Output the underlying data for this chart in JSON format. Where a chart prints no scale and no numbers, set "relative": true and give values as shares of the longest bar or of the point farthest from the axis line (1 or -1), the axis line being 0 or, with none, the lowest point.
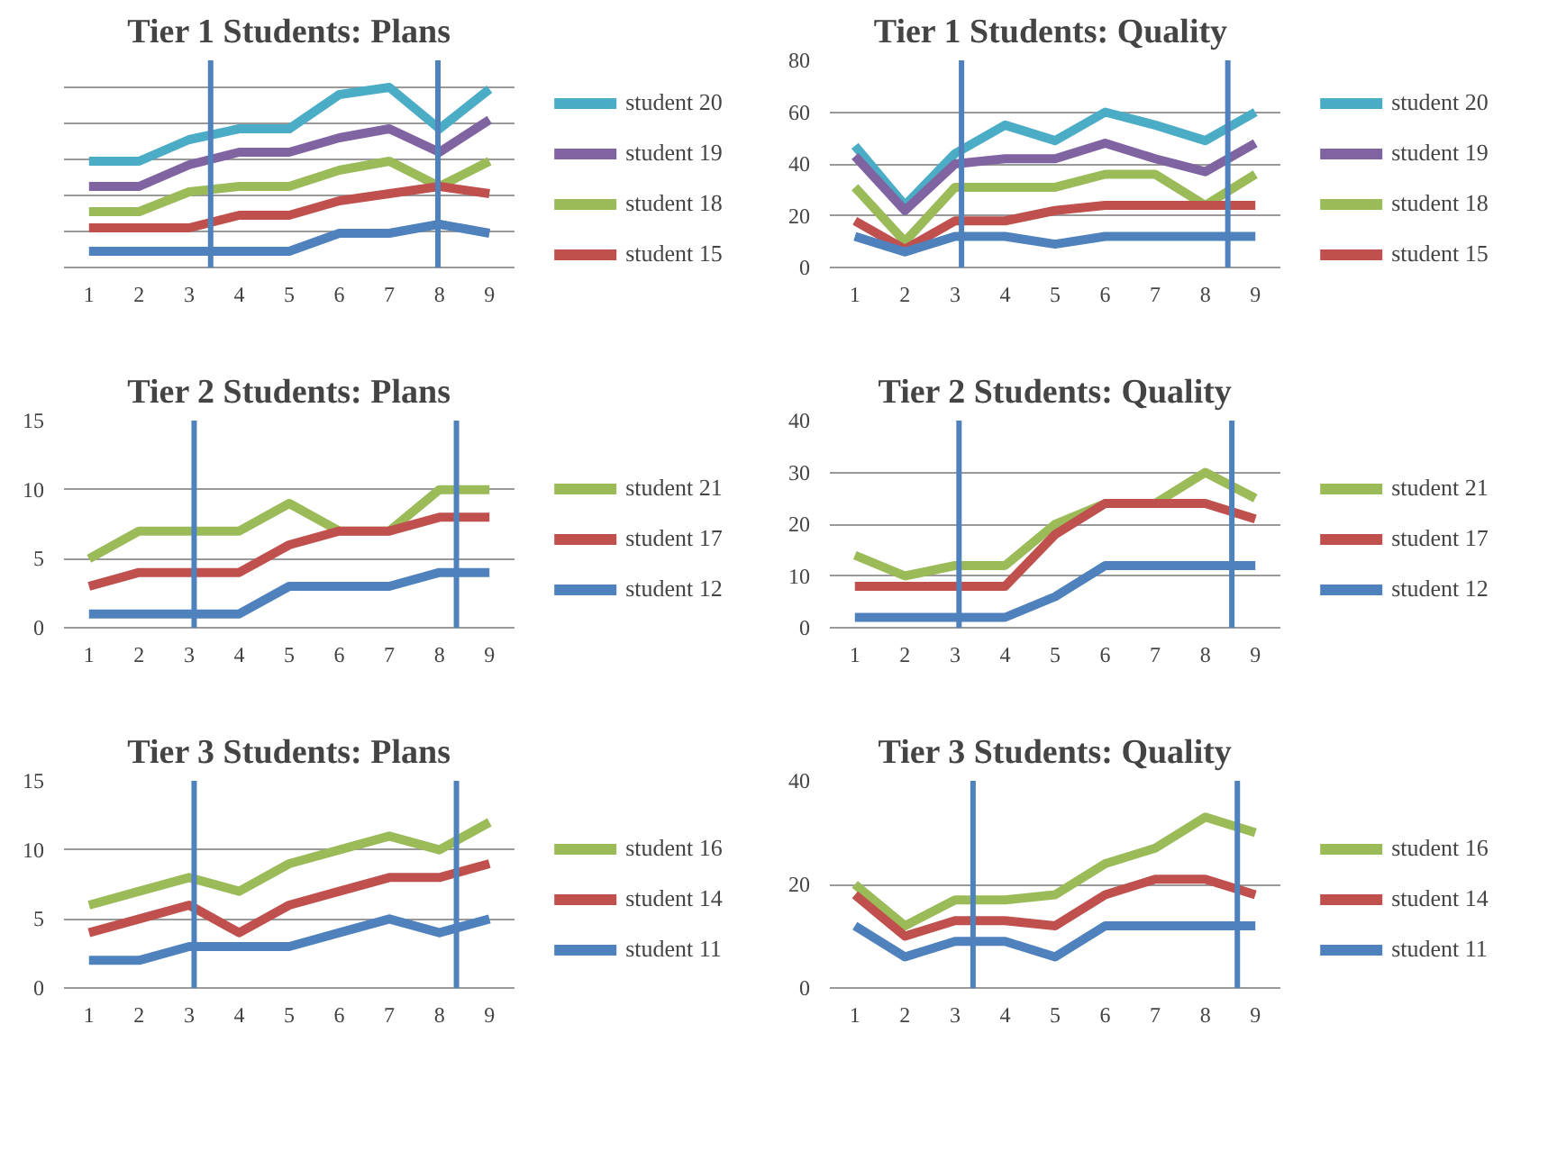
{
  "chart_data": [
    {
      "type": "line",
      "title": "Tier 1 Students: Plans",
      "relative": true,
      "x": [
        1,
        2,
        3,
        4,
        5,
        6,
        7,
        8,
        9
      ],
      "xlim": [
        0.5,
        9.5
      ],
      "xticks": [
        1,
        2,
        3,
        4,
        5,
        6,
        7,
        8,
        9
      ],
      "grid": "y",
      "legend": "right",
      "tick_labels": "x",
      "series": [
        {
          "name": "student 20",
          "color": "#4bacc6",
          "values": [
            0.59,
            0.59,
            0.71,
            0.77,
            0.77,
            0.96,
            1,
            0.77,
            0.99
          ]
        },
        {
          "name": "student 19",
          "color": "#8064a2",
          "values": [
            0.45,
            0.45,
            0.57,
            0.64,
            0.64,
            0.72,
            0.77,
            0.64,
            0.82
          ]
        },
        {
          "name": "student 18",
          "color": "#9bbb59",
          "values": [
            0.31,
            0.31,
            0.42,
            0.45,
            0.45,
            0.54,
            0.59,
            0.45,
            0.59
          ]
        },
        {
          "name": "student 15",
          "color": "#c0504d",
          "values": [
            0.22,
            0.22,
            0.22,
            0.29,
            0.29,
            0.37,
            0.41,
            0.45,
            0.41
          ]
        },
        {
          "color": "#4f81bd",
          "values": [
            0.09,
            0.09,
            0.09,
            0.09,
            0.09,
            0.19,
            0.19,
            0.24,
            0.19
          ]
        }
      ],
      "ref_lines": [
        {
          "axis": "x",
          "value": 3.43,
          "color": "#4f81bd"
        },
        {
          "axis": "x",
          "value": 7.97,
          "color": "#4f81bd"
        }
      ]
    },
    {
      "type": "line",
      "title": "Tier 1 Students:  Quality",
      "x": [
        1,
        2,
        3,
        4,
        5,
        6,
        7,
        8,
        9
      ],
      "xlim": [
        0.5,
        9.5
      ],
      "xticks": [
        1,
        2,
        3,
        4,
        5,
        6,
        7,
        8,
        9
      ],
      "ylim": [
        0,
        80
      ],
      "yticks": [
        0,
        20,
        40,
        60,
        80
      ],
      "grid": "y",
      "legend": "right",
      "series": [
        {
          "name": "student 20",
          "color": "#4bacc6",
          "values": [
            47,
            24,
            44,
            55,
            49,
            60,
            55,
            49,
            60
          ]
        },
        {
          "name": "student 19",
          "color": "#8064a2",
          "values": [
            43,
            22,
            40,
            42,
            42,
            48,
            42,
            37,
            48
          ]
        },
        {
          "name": "student 18",
          "color": "#9bbb59",
          "values": [
            31,
            10,
            31,
            31,
            31,
            36,
            36,
            24,
            36
          ]
        },
        {
          "name": "student 15",
          "color": "#c0504d",
          "values": [
            18,
            7,
            18,
            18,
            22,
            24,
            24,
            24,
            24
          ]
        },
        {
          "color": "#4f81bd",
          "values": [
            12,
            6,
            12,
            12,
            9,
            12,
            12,
            12,
            12
          ]
        }
      ],
      "ref_lines": [
        {
          "axis": "x",
          "value": 3.13,
          "color": "#4f81bd"
        },
        {
          "axis": "x",
          "value": 8.45,
          "color": "#4f81bd"
        }
      ]
    },
    {
      "type": "line",
      "title": "Tier 2 Students: Plans",
      "x": [
        1,
        2,
        3,
        4,
        5,
        6,
        7,
        8,
        9
      ],
      "xlim": [
        0.5,
        9.5
      ],
      "xticks": [
        1,
        2,
        3,
        4,
        5,
        6,
        7,
        8,
        9
      ],
      "ylim": [
        0,
        15
      ],
      "yticks": [
        0,
        5,
        10,
        15
      ],
      "grid": "y",
      "legend": "right",
      "series": [
        {
          "name": "student 21",
          "color": "#9bbb59",
          "values": [
            5,
            7,
            7,
            7,
            9,
            7,
            7,
            10,
            10
          ]
        },
        {
          "name": "student 17",
          "color": "#c0504d",
          "values": [
            3,
            4,
            4,
            4,
            6,
            7,
            7,
            8,
            8
          ]
        },
        {
          "name": "student 12",
          "color": "#4f81bd",
          "values": [
            1,
            1,
            1,
            1,
            3,
            3,
            3,
            4,
            4
          ]
        }
      ],
      "ref_lines": [
        {
          "axis": "x",
          "value": 3.1,
          "color": "#4f81bd"
        },
        {
          "axis": "x",
          "value": 8.34,
          "color": "#4f81bd"
        }
      ]
    },
    {
      "type": "line",
      "title": "Tier 2 Students: Quality",
      "x": [
        1,
        2,
        3,
        4,
        5,
        6,
        7,
        8,
        9
      ],
      "xlim": [
        0.5,
        9.5
      ],
      "xticks": [
        1,
        2,
        3,
        4,
        5,
        6,
        7,
        8,
        9
      ],
      "ylim": [
        0,
        40
      ],
      "yticks": [
        0,
        10,
        20,
        30,
        40
      ],
      "grid": "y",
      "legend": "right",
      "series": [
        {
          "name": "student 21",
          "color": "#9bbb59",
          "values": [
            14,
            10,
            12,
            12,
            20,
            24,
            24,
            30,
            25
          ]
        },
        {
          "name": "student 17",
          "color": "#c0504d",
          "values": [
            8,
            8,
            8,
            8,
            18,
            24,
            24,
            24,
            21
          ]
        },
        {
          "name": "student 12",
          "color": "#4f81bd",
          "values": [
            2,
            2,
            2,
            2,
            6,
            12,
            12,
            12,
            12
          ]
        }
      ],
      "ref_lines": [
        {
          "axis": "x",
          "value": 3.08,
          "color": "#4f81bd"
        },
        {
          "axis": "x",
          "value": 8.53,
          "color": "#4f81bd"
        }
      ]
    },
    {
      "type": "line",
      "title": "Tier 3 Students: Plans",
      "x": [
        1,
        2,
        3,
        4,
        5,
        6,
        7,
        8,
        9
      ],
      "xlim": [
        0.5,
        9.5
      ],
      "xticks": [
        1,
        2,
        3,
        4,
        5,
        6,
        7,
        8,
        9
      ],
      "ylim": [
        0,
        15
      ],
      "yticks": [
        0,
        5,
        10,
        15
      ],
      "grid": "y",
      "legend": "right",
      "series": [
        {
          "name": "student 16",
          "color": "#9bbb59",
          "values": [
            6,
            7,
            8,
            7,
            9,
            10,
            11,
            10,
            12
          ]
        },
        {
          "name": "student 14",
          "color": "#c0504d",
          "values": [
            4,
            5,
            6,
            4,
            6,
            7,
            8,
            8,
            9
          ]
        },
        {
          "name": "student 11",
          "color": "#4f81bd",
          "values": [
            2,
            2,
            3,
            3,
            3,
            4,
            5,
            4,
            5
          ]
        }
      ],
      "ref_lines": [
        {
          "axis": "x",
          "value": 3.1,
          "color": "#4f81bd"
        },
        {
          "axis": "x",
          "value": 8.34,
          "color": "#4f81bd"
        }
      ]
    },
    {
      "type": "line",
      "title": "Tier 3 Students: Quality",
      "x": [
        1,
        2,
        3,
        4,
        5,
        6,
        7,
        8,
        9
      ],
      "xlim": [
        0.5,
        9.5
      ],
      "xticks": [
        1,
        2,
        3,
        4,
        5,
        6,
        7,
        8,
        9
      ],
      "ylim": [
        0,
        40
      ],
      "yticks": [
        0,
        20,
        40
      ],
      "grid": "y",
      "legend": "right",
      "series": [
        {
          "name": "student 16",
          "color": "#9bbb59",
          "values": [
            20,
            12,
            17,
            17,
            18,
            24,
            27,
            33,
            30
          ]
        },
        {
          "name": "student 14",
          "color": "#c0504d",
          "values": [
            18,
            10,
            13,
            13,
            12,
            18,
            21,
            21,
            18
          ]
        },
        {
          "name": "student 11",
          "color": "#4f81bd",
          "values": [
            12,
            6,
            9,
            9,
            6,
            12,
            12,
            12,
            12
          ]
        }
      ],
      "ref_lines": [
        {
          "axis": "x",
          "value": 3.36,
          "color": "#4f81bd"
        },
        {
          "axis": "x",
          "value": 8.64,
          "color": "#4f81bd"
        }
      ]
    }
  ]
}
